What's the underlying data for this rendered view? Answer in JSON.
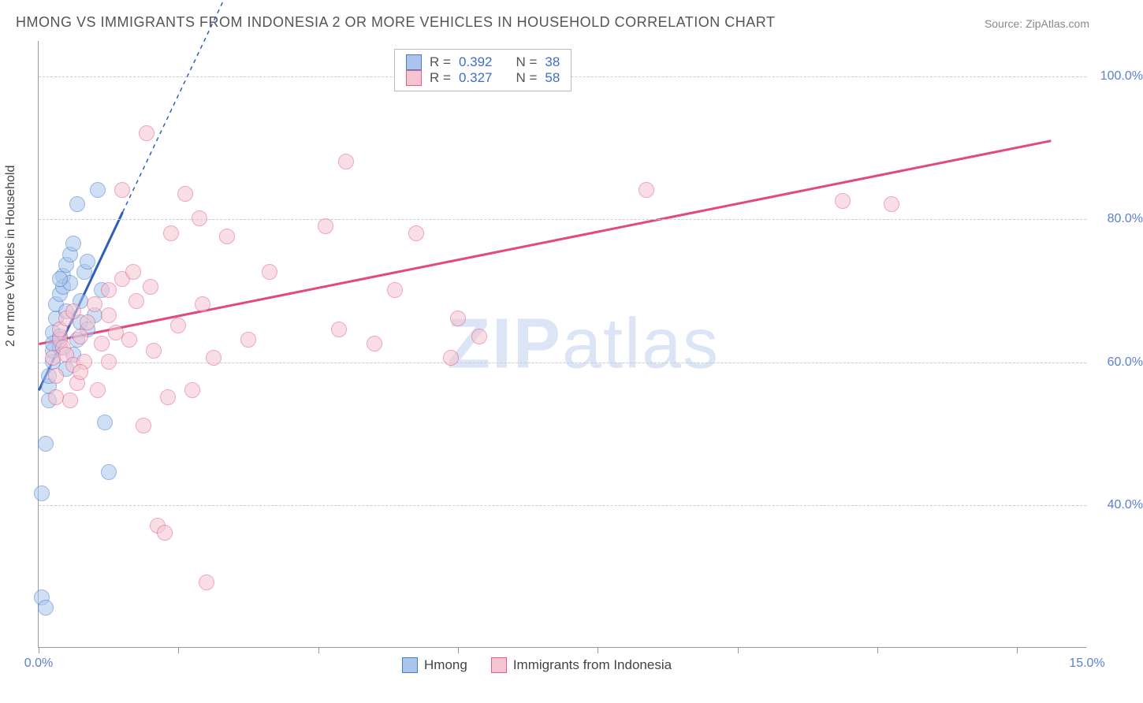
{
  "title": "HMONG VS IMMIGRANTS FROM INDONESIA 2 OR MORE VEHICLES IN HOUSEHOLD CORRELATION CHART",
  "source": "Source: ZipAtlas.com",
  "watermark": {
    "strong": "ZIP",
    "light": "atlas"
  },
  "chart": {
    "type": "scatter",
    "background_color": "#ffffff",
    "grid_color": "#cccccc",
    "axis_color": "#999999",
    "label_color": "#5b7fd1",
    "xlim": [
      0,
      15
    ],
    "ylim": [
      20,
      105
    ],
    "y_gridlines": [
      40,
      60,
      80,
      100
    ],
    "y_tick_labels": [
      "40.0%",
      "60.0%",
      "80.0%",
      "100.0%"
    ],
    "x_ticks": [
      0,
      2,
      4,
      6,
      8,
      10,
      12,
      14
    ],
    "x_tick_labels": {
      "0": "0.0%",
      "15": "15.0%"
    },
    "ylabel": "2 or more Vehicles in Household",
    "marker_radius": 10,
    "series": [
      {
        "name": "Hmong",
        "color_fill": "#a9c5ed",
        "color_stroke": "#4a7cc9",
        "R": "0.392",
        "N": "38",
        "trend": {
          "x1": 0.0,
          "y1": 56,
          "x2": 1.2,
          "y2": 81,
          "dash_extend_x": 3.0,
          "dash_extend_y": 118,
          "color": "#2d5fbd",
          "width": 3
        },
        "points": [
          [
            0.05,
            41.5
          ],
          [
            0.05,
            27
          ],
          [
            0.1,
            25.5
          ],
          [
            0.1,
            48.5
          ],
          [
            0.15,
            54.5
          ],
          [
            0.15,
            56.5
          ],
          [
            0.15,
            58
          ],
          [
            0.2,
            60
          ],
          [
            0.2,
            61.5
          ],
          [
            0.2,
            64
          ],
          [
            0.25,
            66
          ],
          [
            0.25,
            68
          ],
          [
            0.3,
            62
          ],
          [
            0.3,
            63.5
          ],
          [
            0.3,
            69.5
          ],
          [
            0.35,
            70.5
          ],
          [
            0.35,
            72
          ],
          [
            0.4,
            73.5
          ],
          [
            0.4,
            67
          ],
          [
            0.45,
            75
          ],
          [
            0.45,
            71
          ],
          [
            0.5,
            76.5
          ],
          [
            0.55,
            82
          ],
          [
            0.55,
            63
          ],
          [
            0.6,
            65.5
          ],
          [
            0.6,
            68.5
          ],
          [
            0.65,
            72.5
          ],
          [
            0.7,
            74
          ],
          [
            0.7,
            64.5
          ],
          [
            0.8,
            66.5
          ],
          [
            0.85,
            84
          ],
          [
            0.9,
            70
          ],
          [
            0.2,
            62.5
          ],
          [
            0.3,
            71.5
          ],
          [
            0.4,
            59
          ],
          [
            0.5,
            61
          ],
          [
            1.0,
            44.5
          ],
          [
            0.95,
            51.5
          ]
        ]
      },
      {
        "name": "Immigrants from Indonesia",
        "color_fill": "#f6c4d0",
        "color_stroke": "#e15f8a",
        "R": "0.327",
        "N": "58",
        "trend": {
          "x1": 0.0,
          "y1": 62.5,
          "x2": 14.5,
          "y2": 91,
          "color": "#e14a7a",
          "width": 3
        },
        "points": [
          [
            0.2,
            60.5
          ],
          [
            0.25,
            58
          ],
          [
            0.3,
            63
          ],
          [
            0.3,
            64.5
          ],
          [
            0.35,
            62
          ],
          [
            0.4,
            61
          ],
          [
            0.4,
            66
          ],
          [
            0.45,
            54.5
          ],
          [
            0.5,
            59.5
          ],
          [
            0.5,
            67
          ],
          [
            0.55,
            57
          ],
          [
            0.6,
            63.5
          ],
          [
            0.65,
            60
          ],
          [
            0.7,
            65.5
          ],
          [
            0.8,
            68
          ],
          [
            0.85,
            56
          ],
          [
            0.9,
            62.5
          ],
          [
            1.0,
            70
          ],
          [
            1.0,
            66.5
          ],
          [
            1.1,
            64
          ],
          [
            1.2,
            71.5
          ],
          [
            1.2,
            84
          ],
          [
            1.3,
            63
          ],
          [
            1.35,
            72.5
          ],
          [
            1.4,
            68.5
          ],
          [
            1.5,
            51
          ],
          [
            1.55,
            92
          ],
          [
            1.6,
            70.5
          ],
          [
            1.65,
            61.5
          ],
          [
            1.7,
            37
          ],
          [
            1.8,
            36
          ],
          [
            1.85,
            55
          ],
          [
            1.9,
            78
          ],
          [
            2.0,
            65
          ],
          [
            2.1,
            83.5
          ],
          [
            2.2,
            56
          ],
          [
            2.3,
            80
          ],
          [
            2.35,
            68
          ],
          [
            2.4,
            29
          ],
          [
            2.5,
            60.5
          ],
          [
            2.7,
            77.5
          ],
          [
            3.0,
            63
          ],
          [
            3.3,
            72.5
          ],
          [
            4.1,
            79
          ],
          [
            4.3,
            64.5
          ],
          [
            4.4,
            88
          ],
          [
            4.8,
            62.5
          ],
          [
            5.1,
            70
          ],
          [
            5.4,
            78
          ],
          [
            5.9,
            60.5
          ],
          [
            6.0,
            66
          ],
          [
            6.3,
            63.5
          ],
          [
            8.7,
            84
          ],
          [
            11.5,
            82.5
          ],
          [
            12.2,
            82
          ],
          [
            0.25,
            55
          ],
          [
            0.6,
            58.5
          ],
          [
            1.0,
            60
          ]
        ]
      }
    ],
    "legend_top": {
      "rows": [
        {
          "swatch": 0,
          "r_label": "R =",
          "r_value": "0.392",
          "n_label": "N =",
          "n_value": "38"
        },
        {
          "swatch": 1,
          "r_label": "R =",
          "r_value": "0.327",
          "n_label": "N =",
          "n_value": "58"
        }
      ],
      "value_color": "#3d6fc9",
      "label_color": "#555555"
    },
    "legend_bottom": [
      {
        "swatch": 0,
        "label": "Hmong"
      },
      {
        "swatch": 1,
        "label": "Immigrants from Indonesia"
      }
    ]
  }
}
